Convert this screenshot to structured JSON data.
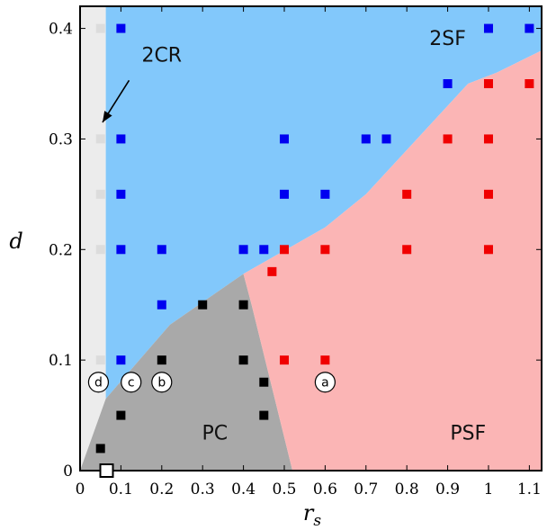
{
  "chart_data": {
    "type": "scatter",
    "xlabel": "r_s",
    "ylabel": "d",
    "xlim": [
      0,
      1.13
    ],
    "ylim": [
      0,
      0.42
    ],
    "xticks": [
      0,
      0.1,
      0.2,
      0.3,
      0.4,
      0.5,
      0.6,
      0.7,
      0.8,
      0.9,
      1,
      1.1
    ],
    "xtick_labels": [
      "0",
      "0.1",
      "0.2",
      "0.3",
      "0.4",
      "0.5",
      "0.6",
      "0.7",
      "0.8",
      "0.9",
      "1",
      "1.1"
    ],
    "yticks": [
      0,
      0.1,
      0.2,
      0.3,
      0.4
    ],
    "ytick_labels": [
      "0",
      "0.1",
      "0.2",
      "0.3",
      "0.4"
    ],
    "regions": [
      {
        "label": "2CR",
        "color": "#ececec",
        "boundary": [
          [
            0,
            0
          ],
          [
            0,
            0.42
          ],
          [
            0.063,
            0.42
          ],
          [
            0.063,
            0
          ]
        ]
      },
      {
        "label": "2SF",
        "color": "#82c8fb",
        "boundary": [
          [
            0.063,
            0.42
          ],
          [
            1.13,
            0.42
          ],
          [
            1.13,
            0.38
          ],
          [
            1.02,
            0.36
          ],
          [
            0.95,
            0.35
          ],
          [
            0.7,
            0.25
          ],
          [
            0.6,
            0.22
          ],
          [
            0.4,
            0.178
          ],
          [
            0.22,
            0.132
          ],
          [
            0.063,
            0.065
          ]
        ]
      },
      {
        "label": "PC",
        "color": "#a9a9a9",
        "boundary": [
          [
            0,
            0
          ],
          [
            0.063,
            0.065
          ],
          [
            0.22,
            0.132
          ],
          [
            0.4,
            0.178
          ],
          [
            0.42,
            0.15
          ],
          [
            0.48,
            0.06
          ],
          [
            0.52,
            0
          ]
        ]
      },
      {
        "label": "PSF",
        "color": "#fbb5b5",
        "boundary": [
          [
            0.52,
            0
          ],
          [
            0.48,
            0.06
          ],
          [
            0.42,
            0.15
          ],
          [
            0.4,
            0.178
          ],
          [
            0.6,
            0.22
          ],
          [
            0.7,
            0.25
          ],
          [
            0.95,
            0.35
          ],
          [
            1.02,
            0.36
          ],
          [
            1.13,
            0.38
          ],
          [
            1.13,
            0
          ]
        ]
      }
    ],
    "region_labels": [
      {
        "text": "2SF",
        "x": 0.9,
        "y": 0.385
      },
      {
        "text": "2CR",
        "x": 0.2,
        "y": 0.37
      },
      {
        "text": "PC",
        "x": 0.33,
        "y": 0.028
      },
      {
        "text": "PSF",
        "x": 0.95,
        "y": 0.028
      }
    ],
    "arrow": {
      "from": [
        0.12,
        0.353
      ],
      "to": [
        0.055,
        0.315
      ]
    },
    "series": [
      {
        "name": "2CR",
        "color": "#dcdcdc",
        "points": [
          [
            0.05,
            0.4
          ],
          [
            0.05,
            0.3
          ],
          [
            0.05,
            0.25
          ],
          [
            0.05,
            0.2
          ],
          [
            0.05,
            0.1
          ]
        ]
      },
      {
        "name": "2SF",
        "color": "#0000f0",
        "points": [
          [
            0.1,
            0.4
          ],
          [
            0.1,
            0.3
          ],
          [
            0.1,
            0.25
          ],
          [
            0.1,
            0.2
          ],
          [
            0.1,
            0.1
          ],
          [
            0.2,
            0.2
          ],
          [
            0.2,
            0.15
          ],
          [
            0.4,
            0.2
          ],
          [
            0.45,
            0.2
          ],
          [
            0.5,
            0.3
          ],
          [
            0.5,
            0.25
          ],
          [
            0.6,
            0.25
          ],
          [
            0.7,
            0.3
          ],
          [
            0.75,
            0.3
          ],
          [
            0.9,
            0.35
          ],
          [
            1,
            0.4
          ],
          [
            1.1,
            0.4
          ]
        ]
      },
      {
        "name": "PSF",
        "color": "#f00000",
        "points": [
          [
            0.47,
            0.18
          ],
          [
            0.5,
            0.2
          ],
          [
            0.6,
            0.2
          ],
          [
            0.5,
            0.1
          ],
          [
            0.6,
            0.1
          ],
          [
            0.8,
            0.25
          ],
          [
            0.8,
            0.2
          ],
          [
            0.9,
            0.3
          ],
          [
            1,
            0.35
          ],
          [
            1,
            0.3
          ],
          [
            1,
            0.25
          ],
          [
            1,
            0.2
          ],
          [
            1.1,
            0.35
          ]
        ]
      },
      {
        "name": "PC",
        "color": "#000000",
        "points": [
          [
            0.3,
            0.15
          ],
          [
            0.4,
            0.15
          ],
          [
            0.2,
            0.1
          ],
          [
            0.4,
            0.1
          ],
          [
            0.45,
            0.08
          ],
          [
            0.1,
            0.05
          ],
          [
            0.45,
            0.05
          ],
          [
            0.05,
            0.02
          ]
        ]
      }
    ],
    "open_marker": {
      "x": 0.065,
      "y": 0.0
    },
    "case_labels": [
      {
        "text": "a",
        "x": 0.6,
        "y": 0.08
      },
      {
        "text": "b",
        "x": 0.2,
        "y": 0.08
      },
      {
        "text": "c",
        "x": 0.125,
        "y": 0.08
      },
      {
        "text": "d",
        "x": 0.045,
        "y": 0.08
      }
    ]
  }
}
